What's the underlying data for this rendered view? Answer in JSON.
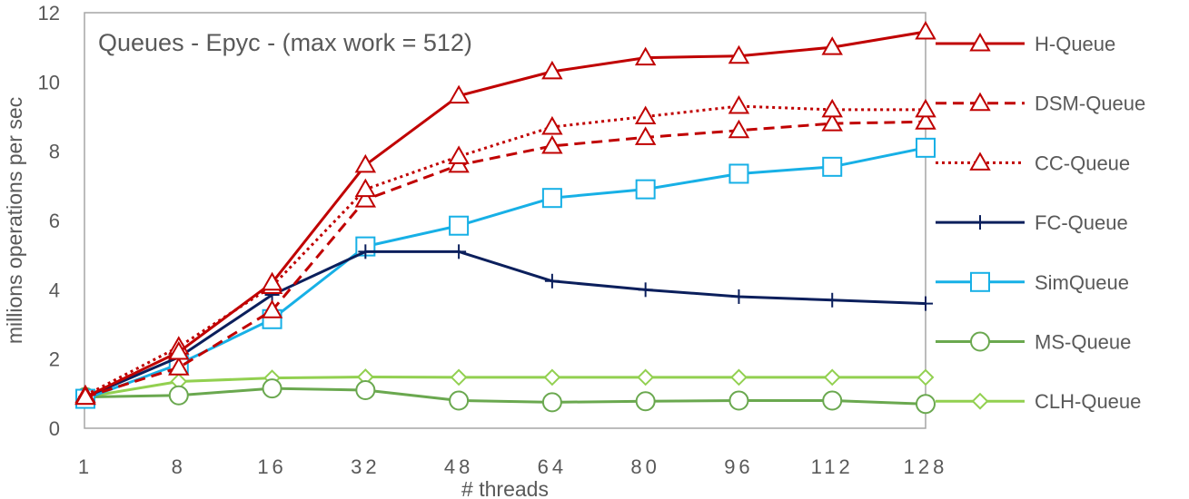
{
  "chart_data": {
    "type": "line",
    "title": "Queues - Epyc - (max work = 512)",
    "xlabel": "# threads",
    "ylabel": "millions operations per sec",
    "categories": [
      "1",
      "8",
      "16",
      "32",
      "48",
      "64",
      "80",
      "96",
      "112",
      "128"
    ],
    "ylim": [
      0,
      12
    ],
    "yticks": [
      0,
      2,
      4,
      6,
      8,
      10,
      12
    ],
    "grid": false,
    "legend": "right",
    "series": [
      {
        "name": "H-Queue",
        "values": [
          0.9,
          2.2,
          4.2,
          7.6,
          9.6,
          10.3,
          10.7,
          10.75,
          11.0,
          11.45
        ],
        "color": "#c00000",
        "dash": "solid",
        "marker": "triangle"
      },
      {
        "name": "DSM-Queue",
        "values": [
          0.9,
          1.75,
          3.4,
          6.6,
          7.6,
          8.15,
          8.4,
          8.6,
          8.8,
          8.85
        ],
        "color": "#c00000",
        "dash": "dashed",
        "marker": "triangle"
      },
      {
        "name": "CC-Queue",
        "values": [
          0.95,
          2.35,
          4.1,
          6.9,
          7.85,
          8.7,
          9.0,
          9.3,
          9.2,
          9.2
        ],
        "color": "#c00000",
        "dash": "dotted",
        "marker": "triangle"
      },
      {
        "name": "FC-Queue",
        "values": [
          0.9,
          2.05,
          3.85,
          5.1,
          5.1,
          4.25,
          4.0,
          3.8,
          3.7,
          3.6
        ],
        "color": "#0b1f5c",
        "dash": "solid",
        "marker": "plus"
      },
      {
        "name": "SimQueue",
        "values": [
          0.85,
          1.85,
          3.15,
          5.25,
          5.85,
          6.65,
          6.9,
          7.35,
          7.55,
          8.1
        ],
        "color": "#17b0e6",
        "dash": "solid",
        "marker": "square"
      },
      {
        "name": "MS-Queue",
        "values": [
          0.9,
          0.95,
          1.15,
          1.1,
          0.8,
          0.75,
          0.78,
          0.8,
          0.8,
          0.7
        ],
        "color": "#6aa84f",
        "dash": "solid",
        "marker": "circle"
      },
      {
        "name": "CLH-Queue",
        "values": [
          0.9,
          1.35,
          1.45,
          1.48,
          1.47,
          1.47,
          1.47,
          1.47,
          1.47,
          1.47
        ],
        "color": "#92d050",
        "dash": "solid",
        "marker": "diamond"
      }
    ]
  }
}
